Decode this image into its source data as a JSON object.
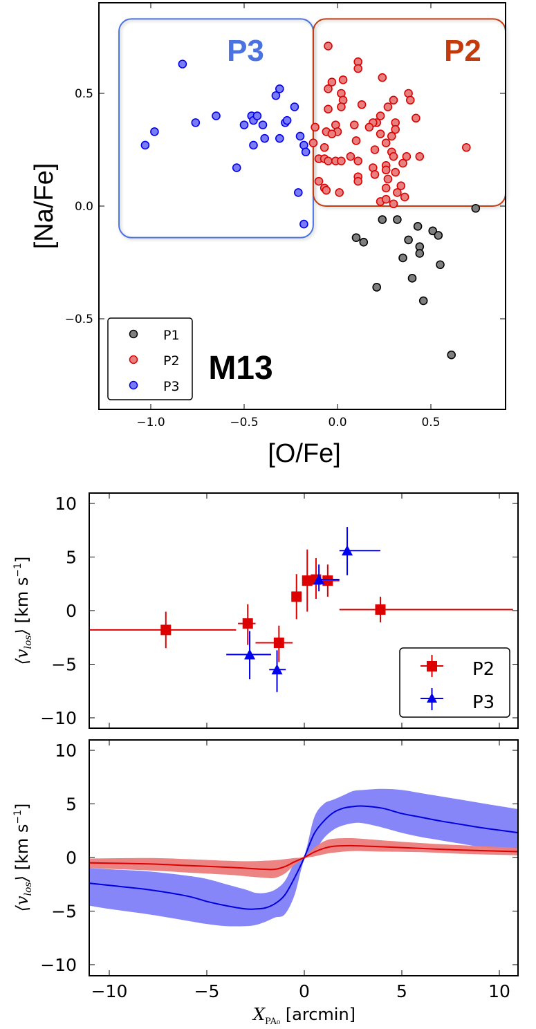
{
  "chart_data": [
    {
      "id": "nafe_ofe",
      "type": "scatter",
      "xlabel": "[O/Fe]",
      "ylabel": "[Na/Fe]",
      "xlim": [
        -1.3,
        0.9
      ],
      "ylim": [
        -0.9,
        0.9
      ],
      "xticks": [
        -1.0,
        -0.5,
        0.0,
        0.5
      ],
      "xtick_labels": [
        "−1.0",
        "−0.5",
        "0.0",
        "0.5"
      ],
      "yticks": [
        0.5,
        0.0,
        -0.5
      ],
      "ytick_labels": [
        "0.5",
        "0.0",
        "−0.5"
      ],
      "annotation": "M13",
      "legend": {
        "position": "lower-left",
        "entries": [
          "P1",
          "P2",
          "P3"
        ]
      },
      "boxes": [
        {
          "label": "P3",
          "color": "#4a72e0",
          "x_range": [
            -1.17,
            -0.13
          ],
          "y_range": [
            -0.14,
            0.83
          ]
        },
        {
          "label": "P2",
          "color": "#c43a0c",
          "x_range": [
            -0.13,
            0.9
          ],
          "y_range": [
            0.0,
            0.83
          ]
        }
      ],
      "series": [
        {
          "name": "P1",
          "fill": "#7f7f7f",
          "stroke": "#000000",
          "points": [
            [
              0.1,
              -0.14
            ],
            [
              0.14,
              -0.16
            ],
            [
              0.21,
              -0.36
            ],
            [
              0.24,
              -0.06
            ],
            [
              0.32,
              -0.06
            ],
            [
              0.35,
              -0.23
            ],
            [
              0.38,
              -0.15
            ],
            [
              0.4,
              -0.32
            ],
            [
              0.43,
              -0.09
            ],
            [
              0.44,
              -0.18
            ],
            [
              0.44,
              -0.21
            ],
            [
              0.46,
              -0.42
            ],
            [
              0.51,
              -0.11
            ],
            [
              0.54,
              -0.13
            ],
            [
              0.55,
              -0.26
            ],
            [
              0.61,
              -0.66
            ],
            [
              0.74,
              -0.01
            ]
          ]
        },
        {
          "name": "P2",
          "fill": "#e88080",
          "stroke": "#dd0000",
          "points": [
            [
              -0.05,
              0.71
            ],
            [
              0.11,
              0.64
            ],
            [
              0.11,
              0.61
            ],
            [
              0.24,
              0.57
            ],
            [
              0.03,
              0.56
            ],
            [
              -0.03,
              0.55
            ],
            [
              -0.05,
              0.52
            ],
            [
              0.02,
              0.5
            ],
            [
              0.03,
              0.47
            ],
            [
              0.02,
              0.44
            ],
            [
              -0.05,
              0.43
            ],
            [
              0.13,
              0.45
            ],
            [
              0.38,
              0.5
            ],
            [
              0.39,
              0.47
            ],
            [
              0.3,
              0.47
            ],
            [
              0.27,
              0.44
            ],
            [
              0.42,
              0.39
            ],
            [
              0.23,
              0.4
            ],
            [
              0.21,
              0.37
            ],
            [
              0.19,
              0.37
            ],
            [
              0.17,
              0.35
            ],
            [
              0.09,
              0.36
            ],
            [
              0.31,
              0.37
            ],
            [
              0.31,
              0.34
            ],
            [
              -0.01,
              0.36
            ],
            [
              0.0,
              0.33
            ],
            [
              -0.06,
              0.33
            ],
            [
              -0.03,
              0.32
            ],
            [
              -0.12,
              0.35
            ],
            [
              0.23,
              0.32
            ],
            [
              0.29,
              0.31
            ],
            [
              0.1,
              0.29
            ],
            [
              0.26,
              0.28
            ],
            [
              -0.13,
              0.28
            ],
            [
              -0.07,
              0.26
            ],
            [
              0.2,
              0.25
            ],
            [
              0.69,
              0.26
            ],
            [
              0.29,
              0.24
            ],
            [
              0.3,
              0.22
            ],
            [
              0.37,
              0.22
            ],
            [
              0.44,
              0.22
            ],
            [
              0.35,
              0.19
            ],
            [
              0.07,
              0.22
            ],
            [
              0.11,
              0.2
            ],
            [
              -0.1,
              0.21
            ],
            [
              -0.07,
              0.21
            ],
            [
              -0.05,
              0.2
            ],
            [
              -0.01,
              0.2
            ],
            [
              0.02,
              0.2
            ],
            [
              0.19,
              0.17
            ],
            [
              0.2,
              0.14
            ],
            [
              0.26,
              0.18
            ],
            [
              0.26,
              0.16
            ],
            [
              0.31,
              0.15
            ],
            [
              0.27,
              0.12
            ],
            [
              0.11,
              0.13
            ],
            [
              0.11,
              0.11
            ],
            [
              -0.1,
              0.11
            ],
            [
              -0.07,
              0.08
            ],
            [
              -0.06,
              0.07
            ],
            [
              0.01,
              0.06
            ],
            [
              0.26,
              0.08
            ],
            [
              0.34,
              0.09
            ],
            [
              0.32,
              0.06
            ],
            [
              0.36,
              0.04
            ],
            [
              0.23,
              0.02
            ],
            [
              0.26,
              0.03
            ],
            [
              0.3,
              0.01
            ]
          ]
        },
        {
          "name": "P3",
          "fill": "#7b7bf5",
          "stroke": "#0000ee",
          "points": [
            [
              -1.03,
              0.27
            ],
            [
              -0.98,
              0.33
            ],
            [
              -0.83,
              0.63
            ],
            [
              -0.76,
              0.37
            ],
            [
              -0.65,
              0.4
            ],
            [
              -0.54,
              0.17
            ],
            [
              -0.5,
              0.36
            ],
            [
              -0.46,
              0.4
            ],
            [
              -0.45,
              0.38
            ],
            [
              -0.43,
              0.4
            ],
            [
              -0.45,
              0.27
            ],
            [
              -0.4,
              0.36
            ],
            [
              -0.39,
              0.3
            ],
            [
              -0.33,
              0.49
            ],
            [
              -0.31,
              0.52
            ],
            [
              -0.31,
              0.3
            ],
            [
              -0.28,
              0.37
            ],
            [
              -0.27,
              0.38
            ],
            [
              -0.23,
              0.44
            ],
            [
              -0.21,
              0.06
            ],
            [
              -0.2,
              0.31
            ],
            [
              -0.18,
              0.27
            ],
            [
              -0.17,
              0.24
            ],
            [
              -0.18,
              -0.08
            ]
          ]
        }
      ]
    },
    {
      "id": "vlos_binned",
      "type": "scatter",
      "xlabel": "",
      "ylabel": "⟨v_los⟩ [km s⁻¹]",
      "xlim": [
        -11,
        11
      ],
      "ylim": [
        -11,
        11
      ],
      "yticks": [
        10,
        5,
        0,
        -5,
        -10
      ],
      "ytick_labels": [
        "10",
        "5",
        "0",
        "−5",
        "−10"
      ],
      "xticks": [
        -10,
        -5,
        0,
        5,
        10
      ],
      "legend": {
        "position": "lower-right",
        "entries": [
          "P2",
          "P3"
        ]
      },
      "series": [
        {
          "name": "P2",
          "marker": "square",
          "color": "#dd0000",
          "points": [
            {
              "x": -7.1,
              "y": -1.8,
              "xlo": -11.1,
              "xhi": -3.5,
              "ylo": -3.5,
              "yhi": -0.1
            },
            {
              "x": -2.9,
              "y": -1.2,
              "xlo": -3.4,
              "xhi": -2.5,
              "ylo": -3.2,
              "yhi": 0.6
            },
            {
              "x": -1.3,
              "y": -3.0,
              "xlo": -2.5,
              "xhi": -0.6,
              "ylo": -4.8,
              "yhi": -1.4
            },
            {
              "x": -0.4,
              "y": 1.3,
              "xlo": -0.4,
              "xhi": -0.4,
              "ylo": -0.8,
              "yhi": 3.4
            },
            {
              "x": 0.15,
              "y": 2.8,
              "xlo": 0.15,
              "xhi": 0.15,
              "ylo": -0.1,
              "yhi": 5.7
            },
            {
              "x": 0.6,
              "y": 2.9,
              "xlo": 0.6,
              "xhi": 0.6,
              "ylo": 1.1,
              "yhi": 4.9
            },
            {
              "x": 1.2,
              "y": 2.8,
              "xlo": 1.2,
              "xhi": 1.8,
              "ylo": 1.3,
              "yhi": 4.3
            },
            {
              "x": 3.9,
              "y": 0.1,
              "xlo": 1.8,
              "xhi": 10.7,
              "ylo": -1.1,
              "yhi": 1.3
            }
          ]
        },
        {
          "name": "P3",
          "marker": "triangle",
          "color": "#0000ee",
          "points": [
            {
              "x": -2.8,
              "y": -4.1,
              "xlo": -4.0,
              "xhi": -1.7,
              "ylo": -6.4,
              "yhi": -1.9
            },
            {
              "x": -1.4,
              "y": -5.5,
              "xlo": -1.8,
              "xhi": -0.95,
              "ylo": -7.6,
              "yhi": -3.7
            },
            {
              "x": 0.75,
              "y": 2.9,
              "xlo": 0.75,
              "xhi": 1.8,
              "ylo": 1.8,
              "yhi": 4.3
            },
            {
              "x": 2.2,
              "y": 5.6,
              "xlo": 1.8,
              "xhi": 3.9,
              "ylo": 3.3,
              "yhi": 7.8
            }
          ]
        }
      ]
    },
    {
      "id": "vlos_model",
      "type": "area",
      "xlabel": "X_PA0 [arcmin]",
      "ylabel": "⟨v_los⟩ [km s⁻¹]",
      "xlim": [
        -11,
        11
      ],
      "ylim": [
        -11,
        11
      ],
      "xticks": [
        -10,
        -5,
        0,
        5,
        10
      ],
      "xtick_labels": [
        "−10",
        "−5",
        "0",
        "5",
        "10"
      ],
      "yticks": [
        10,
        5,
        0,
        -5,
        -10
      ],
      "ytick_labels": [
        "10",
        "5",
        "0",
        "−5",
        "−10"
      ],
      "series": [
        {
          "name": "P3 model",
          "line_color": "#0000dd",
          "band_color": "#8080f8",
          "x": [
            -11,
            -10,
            -8,
            -6,
            -5,
            -4,
            -3,
            -2.5,
            -2,
            -1.5,
            -1,
            -0.5,
            0,
            0.5,
            1,
            1.5,
            2,
            2.5,
            3,
            4,
            5,
            6,
            7,
            8,
            9,
            10,
            11
          ],
          "mean": [
            -2.4,
            -2.6,
            -3.0,
            -3.6,
            -4.1,
            -4.5,
            -4.8,
            -4.8,
            -4.7,
            -4.3,
            -3.5,
            -1.9,
            0,
            2.2,
            3.4,
            4.2,
            4.6,
            4.75,
            4.8,
            4.6,
            4.1,
            3.75,
            3.4,
            3.1,
            2.8,
            2.55,
            2.3
          ],
          "lower": [
            -4.5,
            -4.8,
            -5.3,
            -5.9,
            -6.2,
            -6.4,
            -6.4,
            -6.3,
            -6.0,
            -5.6,
            -5.3,
            -3.5,
            -0.2,
            0.5,
            1.8,
            2.6,
            3.0,
            3.2,
            3.2,
            2.8,
            2.3,
            1.9,
            1.6,
            1.3,
            1.0,
            0.8,
            0.6
          ],
          "upper": [
            -1.0,
            -1.1,
            -1.3,
            -1.7,
            -2.0,
            -2.5,
            -3.0,
            -3.3,
            -3.3,
            -3.0,
            -2.2,
            -0.5,
            0.2,
            3.7,
            5.0,
            5.4,
            5.8,
            6.2,
            6.3,
            6.4,
            6.3,
            6.0,
            5.7,
            5.4,
            5.1,
            4.8,
            4.5
          ]
        },
        {
          "name": "P2 model",
          "line_color": "#dd0000",
          "band_color": "#eb7d7d",
          "x": [
            -11,
            -8,
            -6,
            -4,
            -3,
            -2,
            -1.5,
            -1,
            -0.5,
            0,
            0.5,
            1,
            1.5,
            2.5,
            4,
            6,
            8,
            11
          ],
          "mean": [
            -0.5,
            -0.6,
            -0.75,
            -0.9,
            -1.0,
            -1.1,
            -1.1,
            -0.85,
            -0.4,
            0,
            0.5,
            0.85,
            1.05,
            1.1,
            1.0,
            0.85,
            0.7,
            0.55
          ],
          "lower": [
            -1.0,
            -1.2,
            -1.4,
            -1.6,
            -1.75,
            -1.9,
            -1.9,
            -1.5,
            -0.7,
            -0.1,
            0.1,
            0.3,
            0.45,
            0.6,
            0.55,
            0.5,
            0.35,
            0.2
          ],
          "upper": [
            -0.1,
            -0.05,
            -0.15,
            -0.3,
            -0.35,
            -0.3,
            -0.25,
            -0.15,
            -0.05,
            0.1,
            0.9,
            1.5,
            1.75,
            1.8,
            1.6,
            1.35,
            1.15,
            0.9
          ]
        }
      ]
    }
  ]
}
